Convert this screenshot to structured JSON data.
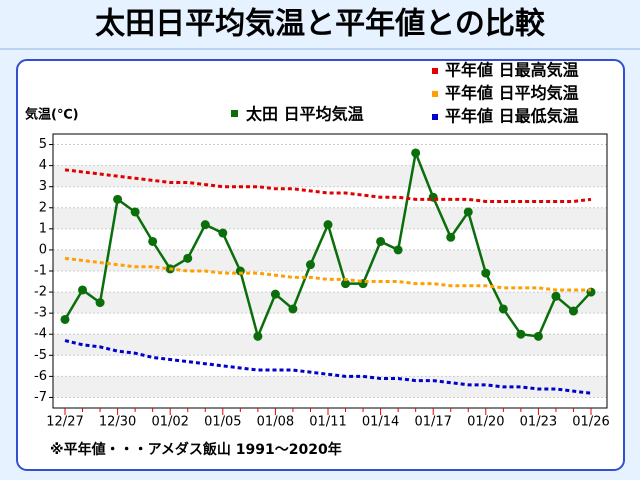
{
  "chart_data": {
    "type": "line",
    "title": "太田日平均気温と平年値との比較",
    "y_label": "気温(℃)",
    "footnote": "※平年値・・・アメダス飯山 1991〜2020年",
    "categories": [
      "12/27",
      null,
      null,
      "12/30",
      null,
      null,
      "01/02",
      null,
      null,
      "01/05",
      null,
      null,
      "01/08",
      null,
      null,
      "01/11",
      null,
      null,
      "01/14",
      null,
      null,
      "01/17",
      null,
      null,
      "01/20",
      null,
      null,
      "01/23",
      null,
      null,
      "01/26"
    ],
    "ylim": [
      -7.5,
      5.5
    ],
    "yticks": [
      -7,
      -6,
      -5,
      -4,
      -3,
      -2,
      -1,
      0,
      1,
      2,
      3,
      4,
      5
    ],
    "grid": true,
    "series": [
      {
        "name": "太田 日平均気温",
        "color": "#0a6e0a",
        "linestyle": "solid",
        "marker": true,
        "values": [
          -3.3,
          -1.9,
          -2.5,
          2.4,
          1.8,
          0.4,
          -0.9,
          -0.4,
          1.2,
          0.8,
          -1.0,
          -4.1,
          -2.1,
          -2.8,
          -0.7,
          1.2,
          -1.6,
          -1.6,
          0.4,
          0.0,
          4.6,
          2.5,
          0.6,
          1.8,
          -1.1,
          -2.8,
          -4.0,
          -4.1,
          -2.2,
          -2.9,
          -2.0
        ]
      },
      {
        "name": "平年値 日最高気温",
        "color": "#e00000",
        "linestyle": "dashed",
        "marker": false,
        "values": [
          3.8,
          3.7,
          3.6,
          3.5,
          3.4,
          3.3,
          3.2,
          3.2,
          3.1,
          3.0,
          3.0,
          3.0,
          2.9,
          2.9,
          2.8,
          2.7,
          2.7,
          2.6,
          2.5,
          2.5,
          2.4,
          2.4,
          2.4,
          2.4,
          2.3,
          2.3,
          2.3,
          2.3,
          2.3,
          2.3,
          2.4
        ]
      },
      {
        "name": "平年値 日平均気温",
        "color": "#ffa000",
        "linestyle": "dashed",
        "marker": false,
        "values": [
          -0.4,
          -0.5,
          -0.6,
          -0.7,
          -0.8,
          -0.8,
          -0.9,
          -1.0,
          -1.0,
          -1.1,
          -1.1,
          -1.1,
          -1.2,
          -1.3,
          -1.3,
          -1.4,
          -1.4,
          -1.5,
          -1.5,
          -1.5,
          -1.6,
          -1.6,
          -1.7,
          -1.7,
          -1.7,
          -1.8,
          -1.8,
          -1.8,
          -1.9,
          -1.9,
          -1.9
        ]
      },
      {
        "name": "平年値 日最低気温",
        "color": "#0000cc",
        "linestyle": "dashed",
        "marker": false,
        "values": [
          -4.3,
          -4.5,
          -4.6,
          -4.8,
          -4.9,
          -5.1,
          -5.2,
          -5.3,
          -5.4,
          -5.5,
          -5.6,
          -5.7,
          -5.7,
          -5.7,
          -5.8,
          -5.9,
          -6.0,
          -6.0,
          -6.1,
          -6.1,
          -6.2,
          -6.2,
          -6.3,
          -6.4,
          -6.4,
          -6.5,
          -6.5,
          -6.6,
          -6.6,
          -6.7,
          -6.8
        ]
      }
    ]
  }
}
